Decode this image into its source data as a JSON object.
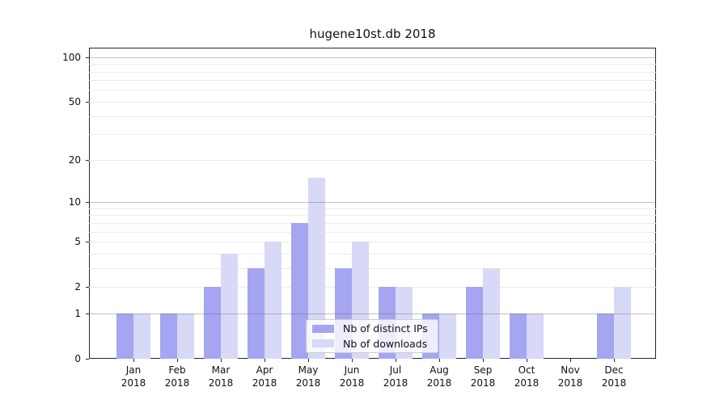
{
  "chart_data": {
    "type": "bar",
    "title": "hugene10st.db 2018",
    "xlabel": "",
    "ylabel": "",
    "months": [
      "Jan",
      "Feb",
      "Mar",
      "Apr",
      "May",
      "Jun",
      "Jul",
      "Aug",
      "Sep",
      "Oct",
      "Nov",
      "Dec"
    ],
    "year_label": "2018",
    "categories": [
      "Jan 2018",
      "Feb 2018",
      "Mar 2018",
      "Apr 2018",
      "May 2018",
      "Jun 2018",
      "Jul 2018",
      "Aug 2018",
      "Sep 2018",
      "Oct 2018",
      "Nov 2018",
      "Dec 2018"
    ],
    "series": [
      {
        "name": "Nb of distinct IPs",
        "color": "#a5a5f2",
        "values": [
          1,
          1,
          2,
          3,
          7,
          3,
          2,
          1,
          2,
          1,
          0,
          1
        ]
      },
      {
        "name": "Nb of downloads",
        "color": "#d8d8f7",
        "values": [
          1,
          1,
          4,
          5,
          15,
          5,
          2,
          1,
          3,
          1,
          0,
          2
        ]
      }
    ],
    "yscale": "log1p",
    "ylim": [
      0,
      115.6
    ],
    "y_tick_values": [
      0,
      1,
      2,
      5,
      10,
      20,
      50,
      100
    ],
    "y_tick_labels": [
      "0",
      "1",
      "2",
      "5",
      "10",
      "20",
      "50",
      "100"
    ],
    "y_minor_gridlines": [
      2,
      3,
      4,
      5,
      6,
      7,
      8,
      9,
      20,
      30,
      40,
      50,
      60,
      70,
      80,
      90
    ],
    "y_major_gridlines": [
      1,
      10,
      100
    ],
    "grid": true,
    "legend_position": "lower center",
    "colors": {
      "background": "#ffffff",
      "axis": "#262626",
      "grid_minor": "#ebebeb",
      "grid_major": "#b0b0b0",
      "legend_border": "#cccccc"
    }
  }
}
